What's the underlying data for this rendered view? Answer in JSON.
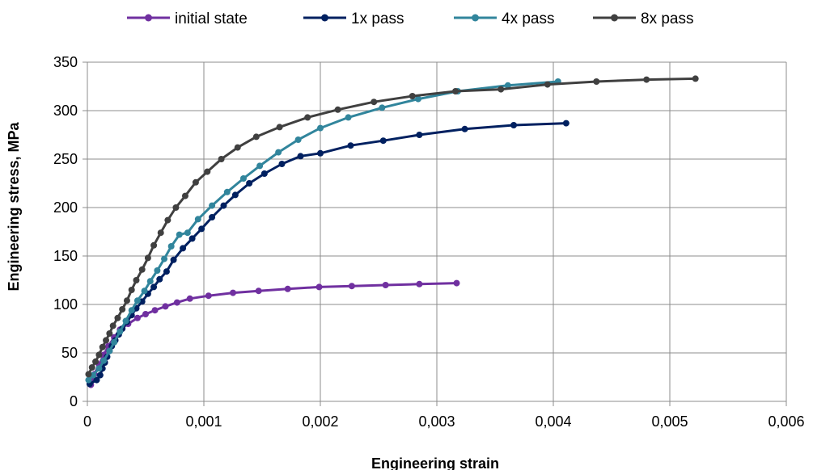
{
  "chart_data": {
    "type": "line",
    "title": "",
    "xlabel": "Engineering strain",
    "ylabel": "Engineering stress, MPa",
    "xlim": [
      0,
      0.006
    ],
    "ylim": [
      0,
      350
    ],
    "x_ticks": [
      0,
      0.001,
      0.002,
      0.003,
      0.004,
      0.005,
      0.006
    ],
    "x_tick_labels": [
      "0",
      "0,001",
      "0,002",
      "0,003",
      "0,004",
      "0,005",
      "0,006"
    ],
    "y_ticks": [
      0,
      50,
      100,
      150,
      200,
      250,
      300,
      350
    ],
    "y_tick_labels": [
      "0",
      "50",
      "100",
      "150",
      "200",
      "250",
      "300",
      "350"
    ],
    "grid": true,
    "legend_position": "top",
    "series": [
      {
        "name": "initial state",
        "color": "#7030a0",
        "points": [
          [
            3e-05,
            17
          ],
          [
            6e-05,
            28
          ],
          [
            0.0001,
            38
          ],
          [
            0.00014,
            48
          ],
          [
            0.00018,
            57
          ],
          [
            0.00023,
            66
          ],
          [
            0.00028,
            74
          ],
          [
            0.00035,
            80
          ],
          [
            0.00043,
            86
          ],
          [
            0.0005,
            90
          ],
          [
            0.00058,
            94
          ],
          [
            0.00067,
            98
          ],
          [
            0.00077,
            102
          ],
          [
            0.00088,
            106
          ],
          [
            0.00104,
            109
          ],
          [
            0.00125,
            112
          ],
          [
            0.00147,
            114
          ],
          [
            0.00172,
            116
          ],
          [
            0.00199,
            118
          ],
          [
            0.00227,
            119
          ],
          [
            0.00256,
            120
          ],
          [
            0.00285,
            121
          ],
          [
            0.00317,
            122
          ]
        ]
      },
      {
        "name": "1x pass",
        "color": "#002060",
        "points": [
          [
            2e-05,
            18
          ],
          [
            8e-05,
            22
          ],
          [
            0.00011,
            27
          ],
          [
            0.00013,
            34
          ],
          [
            0.00015,
            40
          ],
          [
            0.00017,
            46
          ],
          [
            0.00019,
            52
          ],
          [
            0.00021,
            57
          ],
          [
            0.00024,
            63
          ],
          [
            0.00027,
            69
          ],
          [
            0.0003,
            75
          ],
          [
            0.00034,
            82
          ],
          [
            0.00038,
            89
          ],
          [
            0.00042,
            96
          ],
          [
            0.00047,
            103
          ],
          [
            0.00052,
            111
          ],
          [
            0.00057,
            118
          ],
          [
            0.00062,
            126
          ],
          [
            0.00068,
            134
          ],
          [
            0.00074,
            146
          ],
          [
            0.00082,
            158
          ],
          [
            0.0009,
            168
          ],
          [
            0.00098,
            178
          ],
          [
            0.00107,
            190
          ],
          [
            0.00117,
            202
          ],
          [
            0.00127,
            213
          ],
          [
            0.00139,
            225
          ],
          [
            0.00152,
            235
          ],
          [
            0.00167,
            245
          ],
          [
            0.00183,
            253
          ],
          [
            0.002,
            256
          ],
          [
            0.00226,
            264
          ],
          [
            0.00254,
            269
          ],
          [
            0.00285,
            275
          ],
          [
            0.00324,
            281
          ],
          [
            0.00366,
            285
          ],
          [
            0.00411,
            287
          ]
        ]
      },
      {
        "name": "4x pass",
        "color": "#31859c",
        "points": [
          [
            1e-05,
            22
          ],
          [
            5e-05,
            27
          ],
          [
            0.0001,
            34
          ],
          [
            0.00014,
            42
          ],
          [
            0.00019,
            52
          ],
          [
            0.00023,
            61
          ],
          [
            0.00028,
            72
          ],
          [
            0.00033,
            83
          ],
          [
            0.00038,
            94
          ],
          [
            0.00043,
            104
          ],
          [
            0.00049,
            114
          ],
          [
            0.00054,
            124
          ],
          [
            0.0006,
            135
          ],
          [
            0.00066,
            147
          ],
          [
            0.00072,
            160
          ],
          [
            0.00079,
            172
          ],
          [
            0.00086,
            174
          ],
          [
            0.00095,
            188
          ],
          [
            0.00107,
            202
          ],
          [
            0.0012,
            216
          ],
          [
            0.00134,
            230
          ],
          [
            0.00148,
            243
          ],
          [
            0.00164,
            257
          ],
          [
            0.00181,
            270
          ],
          [
            0.002,
            282
          ],
          [
            0.00224,
            293
          ],
          [
            0.00253,
            303
          ],
          [
            0.00284,
            312
          ],
          [
            0.00318,
            320
          ],
          [
            0.00361,
            326
          ],
          [
            0.00404,
            330
          ]
        ]
      },
      {
        "name": "8x pass",
        "color": "#404040",
        "points": [
          [
            1e-05,
            28
          ],
          [
            4e-05,
            35
          ],
          [
            7e-05,
            41
          ],
          [
            0.0001,
            48
          ],
          [
            0.00013,
            56
          ],
          [
            0.00016,
            63
          ],
          [
            0.00019,
            70
          ],
          [
            0.00022,
            78
          ],
          [
            0.00026,
            86
          ],
          [
            0.0003,
            95
          ],
          [
            0.00034,
            104
          ],
          [
            0.00038,
            115
          ],
          [
            0.00042,
            125
          ],
          [
            0.00047,
            136
          ],
          [
            0.00052,
            148
          ],
          [
            0.00057,
            161
          ],
          [
            0.00063,
            174
          ],
          [
            0.00069,
            187
          ],
          [
            0.00076,
            200
          ],
          [
            0.00084,
            212
          ],
          [
            0.00093,
            226
          ],
          [
            0.00103,
            237
          ],
          [
            0.00115,
            250
          ],
          [
            0.00129,
            262
          ],
          [
            0.00145,
            273
          ],
          [
            0.00165,
            283
          ],
          [
            0.00189,
            293
          ],
          [
            0.00215,
            301
          ],
          [
            0.00246,
            309
          ],
          [
            0.00279,
            315
          ],
          [
            0.00316,
            320
          ],
          [
            0.00355,
            322
          ],
          [
            0.00395,
            327
          ],
          [
            0.00437,
            330
          ],
          [
            0.0048,
            332
          ],
          [
            0.00522,
            333
          ]
        ]
      }
    ]
  }
}
